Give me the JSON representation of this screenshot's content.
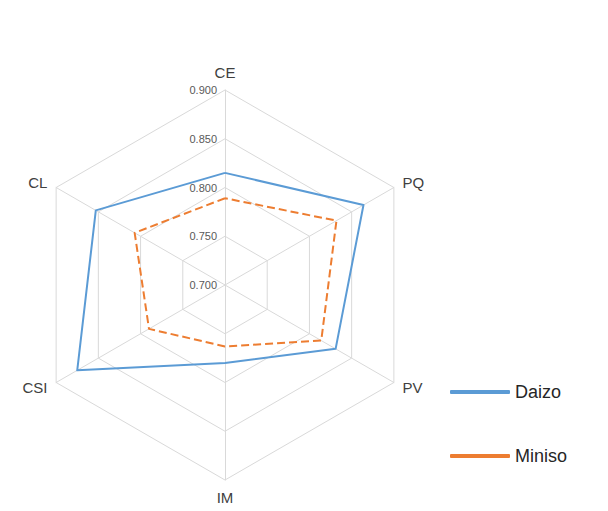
{
  "chart_data": {
    "type": "radar",
    "categories": [
      "CE",
      "CL",
      "CSI",
      "IM",
      "PV",
      "PQ"
    ],
    "series": [
      {
        "name": "Daizo",
        "color": "#5b9bd5",
        "line_style": "solid",
        "values": [
          0.815,
          0.853,
          0.875,
          0.78,
          0.831,
          0.864
        ]
      },
      {
        "name": "Miniso",
        "color": "#ed7d31",
        "line_style": "dashed",
        "values": [
          0.789,
          0.807,
          0.79,
          0.763,
          0.814,
          0.832
        ]
      }
    ],
    "ylim": [
      0.7,
      0.9
    ],
    "yticks": [
      {
        "value": 0.7,
        "label": "0.700"
      },
      {
        "value": 0.75,
        "label": "0.750"
      },
      {
        "value": 0.8,
        "label": "0.800"
      },
      {
        "value": 0.85,
        "label": "0.850"
      },
      {
        "value": 0.9,
        "label": "0.900"
      }
    ],
    "grid": true,
    "legend": "right"
  }
}
